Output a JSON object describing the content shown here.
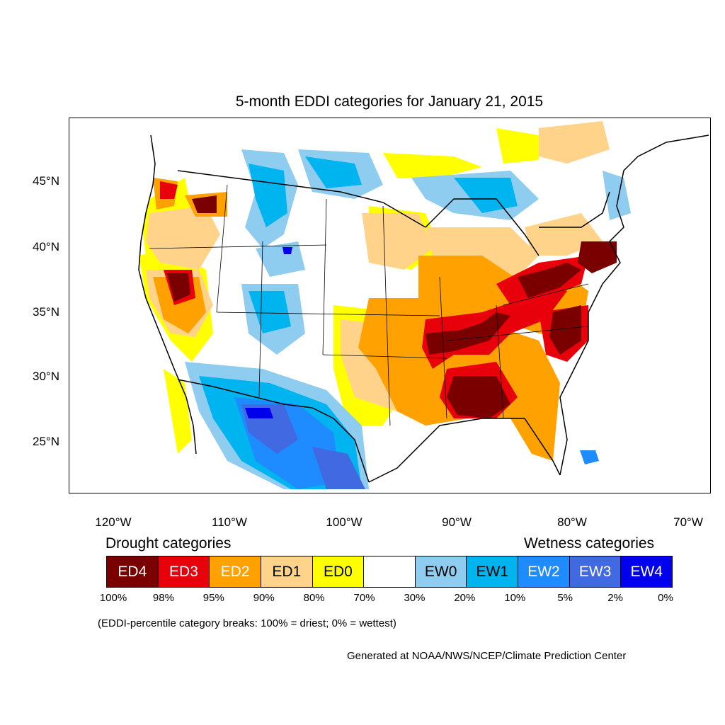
{
  "title": "5-month EDDI categories for January 21, 2015",
  "y_axis_labels": [
    "45°N",
    "40°N",
    "35°N",
    "30°N",
    "25°N"
  ],
  "x_axis_labels": [
    "120°W",
    "110°W",
    "100°W",
    "90°W",
    "80°W",
    "70°W"
  ],
  "legend": {
    "drought_heading": "Drought categories",
    "wetness_heading": "Wetness categories",
    "categories": [
      {
        "label": "ED4",
        "color": "#7a0000",
        "text_color": "#ffffff"
      },
      {
        "label": "ED3",
        "color": "#e8000a",
        "text_color": "#ffffff"
      },
      {
        "label": "ED2",
        "color": "#ffa100",
        "text_color": "#ffffff"
      },
      {
        "label": "ED1",
        "color": "#ffd38a",
        "text_color": "#000000"
      },
      {
        "label": "ED0",
        "color": "#ffff00",
        "text_color": "#000000"
      },
      {
        "label": "",
        "color": "#ffffff",
        "text_color": "#000000"
      },
      {
        "label": "EW0",
        "color": "#8ecdf0",
        "text_color": "#000000"
      },
      {
        "label": "EW1",
        "color": "#00b4ef",
        "text_color": "#000000"
      },
      {
        "label": "EW2",
        "color": "#1e8cff",
        "text_color": "#ffffff"
      },
      {
        "label": "EW3",
        "color": "#4169e1",
        "text_color": "#ffffff"
      },
      {
        "label": "EW4",
        "color": "#0000ee",
        "text_color": "#ffffff"
      }
    ],
    "percent_breaks": [
      "100%",
      "98%",
      "95%",
      "90%",
      "80%",
      "70%",
      "30%",
      "20%",
      "10%",
      "5%",
      "2%",
      "0%"
    ]
  },
  "note": "(EDDI-percentile category breaks: 100% = driest; 0% = wettest)",
  "credit": "Generated at NOAA/NWS/NCEP/Climate Prediction Center"
}
